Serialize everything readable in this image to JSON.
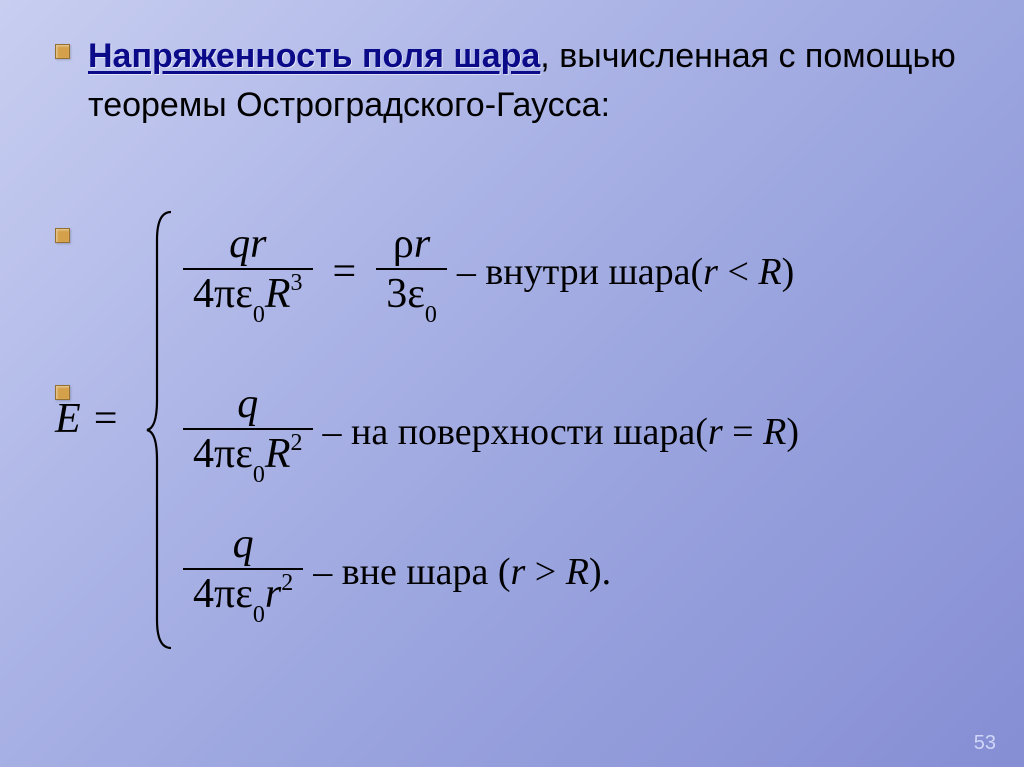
{
  "heading": {
    "underlined": "Напряженность поля шара",
    "rest": ", вычисленная с помощью теоремы Остроградского-Гаусса:"
  },
  "formula": {
    "lhs": "E =",
    "row1": {
      "frac1_num": "qr",
      "frac1_den_html": "4πε<span class='sub'>0</span><span class='italic'>R</span><span class='sup'>3</span>",
      "eq": "=",
      "frac2_num_html": "ρ<span class='italic'>r</span>",
      "frac2_den_html": "3ε<span class='sub'>0</span>",
      "desc_pre": "– внутри шара(",
      "desc_math_html": "<span class='italic'>r</span> &lt; <span class='italic'>R</span>",
      "desc_post": ")"
    },
    "row2": {
      "frac_num": "q",
      "frac_den_html": "4πε<span class='sub'>0</span><span class='italic'>R</span><span class='sup'>2</span>",
      "desc_pre": "– на поверхности шара(",
      "desc_math_html": "<span class='italic'>r</span> = <span class='italic'>R</span>",
      "desc_post": ")"
    },
    "row3": {
      "frac_num": "q",
      "frac_den_html": "4πε<span class='sub'>0</span><span class='italic'>r</span><span class='sup'>2</span>",
      "desc_pre": "– вне шара (",
      "desc_math_html": "<span class='italic'>r</span> &gt; <span class='italic'>R</span>",
      "desc_post": ")."
    }
  },
  "colors": {
    "bullet_fill": "#d4a04a",
    "bullet_border": "#947030",
    "underline_color": "#0b0b8a",
    "text_color": "#000000",
    "bg_grad_start": "#c8cef0",
    "bg_grad_end": "#868ed4",
    "pagenum_color": "#cfd6f7"
  },
  "page_number": "53"
}
